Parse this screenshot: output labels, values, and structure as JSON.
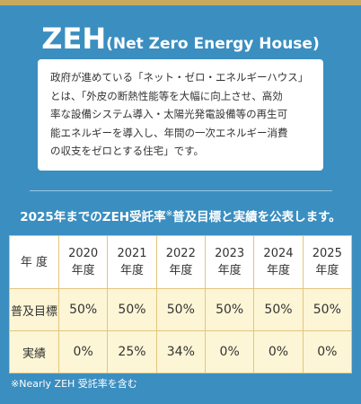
{
  "header": {
    "title": "ZEH",
    "subtitle": "(Net Zero Energy House)"
  },
  "intro": {
    "lines": [
      "政府が進めている「ネット・ゼロ・エネルギーハウス」",
      "とは、「外皮の断熱性能等を大幅に向上させ、高効",
      "率な設備システム導入・太陽光発電設備等の再生可",
      "能エネルギーを導入し、年間の一次エネルギー消費",
      "の収支をゼロとする住宅」です。"
    ]
  },
  "section": {
    "heading": "2025年までのZEH受託率",
    "mark": "※",
    "heading_rest": "普及目標と実績を公表します。"
  },
  "table": {
    "header": [
      "年 度",
      "2020\n年度",
      "2021\n年度",
      "2022\n年度",
      "2023\n年度",
      "2024\n年度",
      "2025\n年度"
    ],
    "rows": [
      [
        "普及目標",
        "50%",
        "50%",
        "50%",
        "50%",
        "50%",
        "50%"
      ],
      [
        "実績",
        "0%",
        "25%",
        "34%",
        "0%",
        "0%",
        "0%"
      ]
    ]
  },
  "note": "※Nearly ZEH 受託率を含む"
}
